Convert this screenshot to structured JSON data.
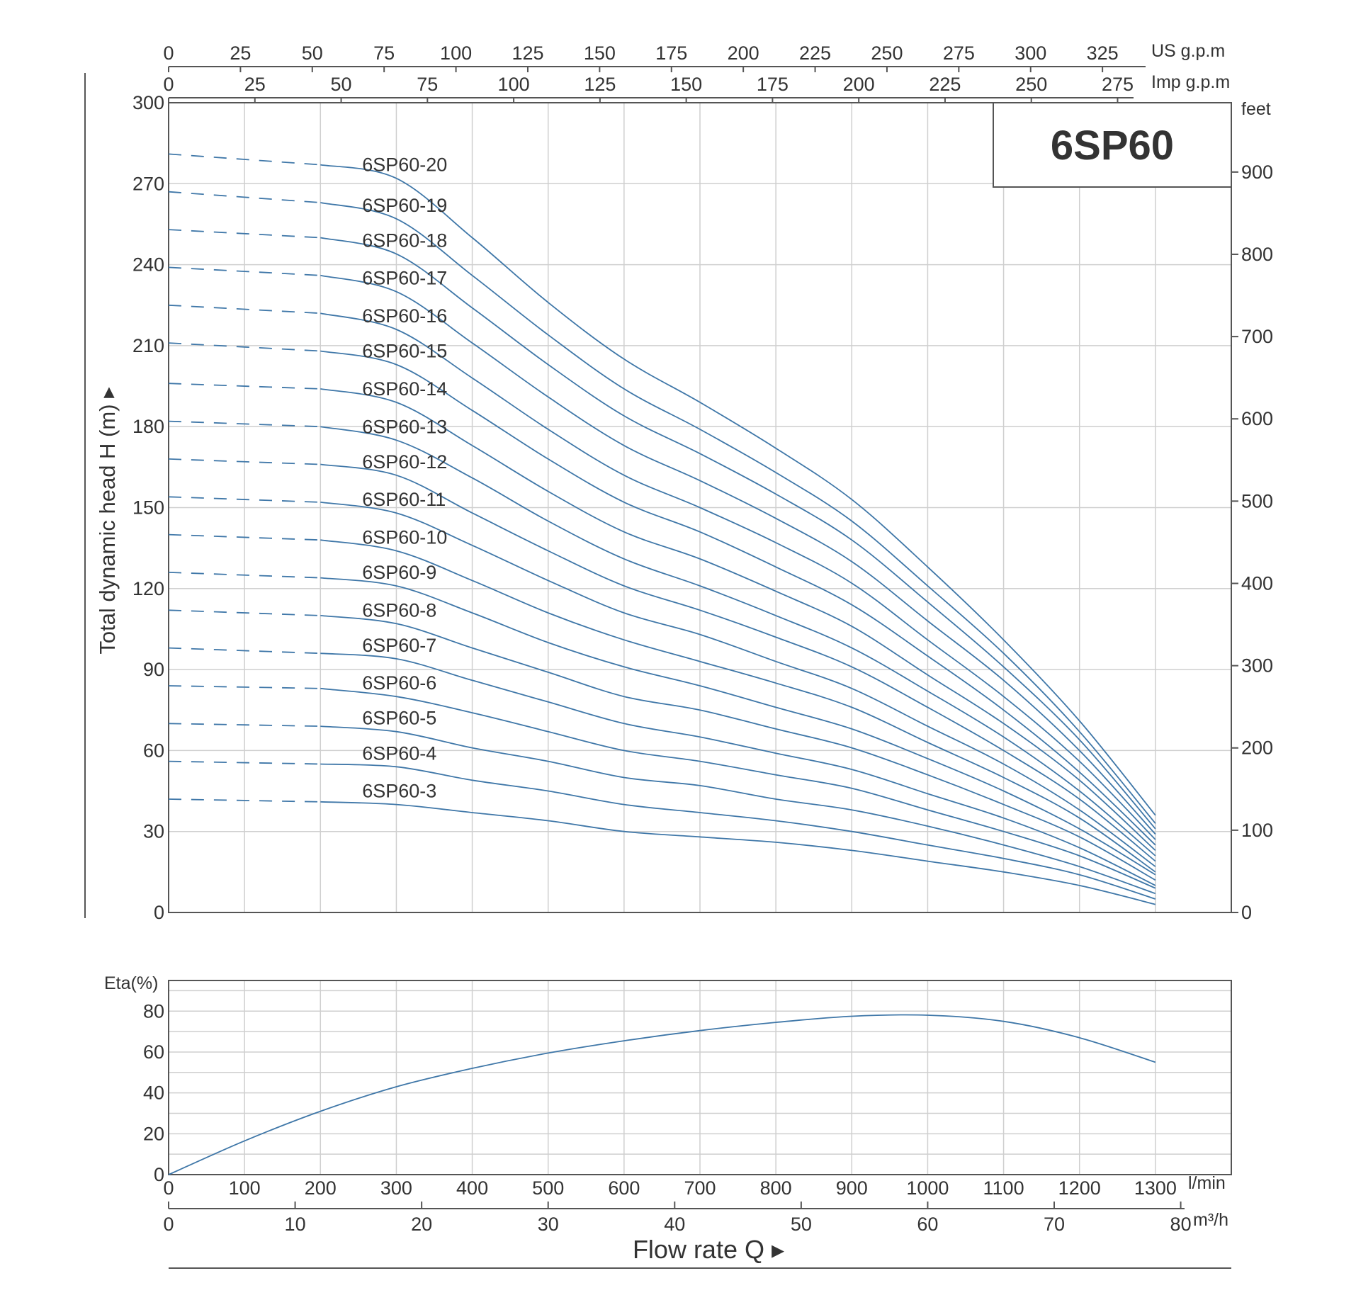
{
  "chart_data": [
    {
      "type": "line",
      "title": "6SP60",
      "ylabel": "Total dynamic head H (m) ▸",
      "xlabel": "Flow rate Q ▸",
      "ylim": [
        0,
        300
      ],
      "xlim": [
        0,
        1400
      ],
      "grid": true,
      "y_ticks": [
        "0",
        "30",
        "60",
        "90",
        "120",
        "150",
        "180",
        "210",
        "240",
        "270",
        "300"
      ],
      "right_axis": {
        "unit": "feet",
        "ticks": [
          "0",
          "100",
          "200",
          "300",
          "400",
          "500",
          "600",
          "700",
          "800",
          "900"
        ]
      },
      "top_axes": [
        {
          "unit": "US g.p.m",
          "ticks": [
            "0",
            "25",
            "50",
            "75",
            "100",
            "125",
            "150",
            "175",
            "200",
            "225",
            "250",
            "275",
            "300",
            "325"
          ]
        },
        {
          "unit": "Imp g.p.m",
          "ticks": [
            "0",
            "25",
            "50",
            "75",
            "100",
            "125",
            "150",
            "175",
            "200",
            "225",
            "250",
            "275"
          ]
        }
      ],
      "x_dashed_until": 200,
      "x": [
        0,
        200,
        300,
        400,
        500,
        600,
        700,
        800,
        900,
        1000,
        1100,
        1200,
        1300
      ],
      "series": [
        {
          "name": "6SP60-20",
          "values": [
            281,
            277,
            272,
            250,
            226,
            205,
            189,
            172,
            153,
            128,
            101,
            71,
            36
          ]
        },
        {
          "name": "6SP60-19",
          "values": [
            267,
            263,
            257,
            236,
            214,
            194,
            179,
            163,
            145,
            121,
            96,
            67,
            33
          ]
        },
        {
          "name": "6SP60-18",
          "values": [
            253,
            250,
            244,
            224,
            203,
            184,
            170,
            155,
            138,
            115,
            91,
            64,
            31
          ]
        },
        {
          "name": "6SP60-17",
          "values": [
            239,
            236,
            230,
            211,
            191,
            173,
            160,
            146,
            130,
            108,
            86,
            60,
            29
          ]
        },
        {
          "name": "6SP60-16",
          "values": [
            225,
            222,
            216,
            198,
            179,
            162,
            150,
            137,
            122,
            101,
            80,
            56,
            27
          ]
        },
        {
          "name": "6SP60-15",
          "values": [
            211,
            208,
            203,
            186,
            168,
            152,
            141,
            128,
            114,
            95,
            75,
            52,
            25
          ]
        },
        {
          "name": "6SP60-14",
          "values": [
            196,
            194,
            189,
            173,
            156,
            141,
            131,
            119,
            106,
            88,
            70,
            49,
            23
          ]
        },
        {
          "name": "6SP60-13",
          "values": [
            182,
            180,
            175,
            161,
            145,
            131,
            121,
            110,
            98,
            82,
            65,
            45,
            21
          ]
        },
        {
          "name": "6SP60-12",
          "values": [
            168,
            166,
            162,
            148,
            134,
            121,
            112,
            102,
            91,
            76,
            60,
            42,
            19
          ]
        },
        {
          "name": "6SP60-11",
          "values": [
            154,
            152,
            148,
            136,
            123,
            111,
            103,
            93,
            83,
            69,
            55,
            38,
            17
          ]
        },
        {
          "name": "6SP60-10",
          "values": [
            140,
            138,
            134,
            123,
            111,
            101,
            93,
            85,
            76,
            63,
            50,
            35,
            15
          ]
        },
        {
          "name": "6SP60-9",
          "values": [
            126,
            124,
            121,
            111,
            100,
            91,
            84,
            76,
            68,
            57,
            45,
            31,
            14
          ]
        },
        {
          "name": "6SP60-8",
          "values": [
            112,
            110,
            107,
            98,
            89,
            80,
            75,
            68,
            61,
            51,
            40,
            28,
            12
          ]
        },
        {
          "name": "6SP60-7",
          "values": [
            98,
            96,
            94,
            86,
            78,
            70,
            65,
            59,
            53,
            44,
            35,
            24,
            10
          ]
        },
        {
          "name": "6SP60-6",
          "values": [
            84,
            83,
            80,
            74,
            67,
            60,
            56,
            51,
            46,
            38,
            30,
            21,
            9
          ]
        },
        {
          "name": "6SP60-5",
          "values": [
            70,
            69,
            67,
            61,
            56,
            50,
            47,
            42,
            38,
            32,
            25,
            17,
            7
          ]
        },
        {
          "name": "6SP60-4",
          "values": [
            56,
            55,
            54,
            49,
            45,
            40,
            37,
            34,
            30,
            25,
            20,
            14,
            5
          ]
        },
        {
          "name": "6SP60-3",
          "values": [
            42,
            41,
            40,
            37,
            34,
            30,
            28,
            26,
            23,
            19,
            15,
            10,
            3
          ]
        }
      ],
      "colors": {
        "curve": "#3f77a8",
        "grid": "#cfcfcf",
        "frame": "#555555",
        "text": "#333333"
      }
    },
    {
      "type": "line",
      "ylabel": "Eta(%)",
      "ylim": [
        0,
        95
      ],
      "xlim": [
        0,
        1400
      ],
      "grid": true,
      "y_ticks": [
        "0",
        "20",
        "40",
        "60",
        "80"
      ],
      "x_lmin_ticks": [
        "0",
        "100",
        "200",
        "300",
        "400",
        "500",
        "600",
        "700",
        "800",
        "900",
        "1000",
        "1100",
        "1200",
        "1300"
      ],
      "x_lmin_unit": "l/min",
      "x_m3h_ticks": [
        "0",
        "10",
        "20",
        "30",
        "40",
        "50",
        "60",
        "70",
        "80"
      ],
      "x_m3h_unit": "m³/h",
      "x": [
        0,
        100,
        200,
        300,
        400,
        500,
        600,
        700,
        800,
        900,
        1000,
        1100,
        1200,
        1300
      ],
      "series": [
        {
          "values": [
            0,
            16.5,
            31,
            43,
            52,
            59.5,
            65.5,
            70.5,
            74.5,
            77.5,
            78,
            75,
            67,
            55
          ]
        }
      ],
      "colors": {
        "curve": "#3f77a8"
      }
    }
  ]
}
